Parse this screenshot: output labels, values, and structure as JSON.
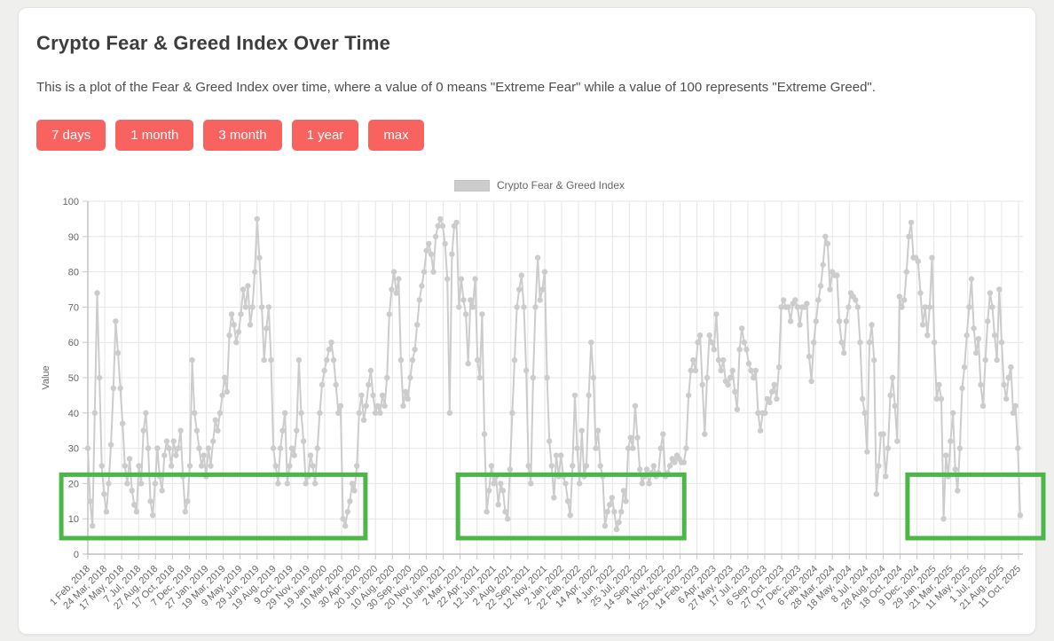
{
  "header": {
    "title": "Crypto Fear & Greed Index Over Time",
    "description": "This is a plot of the Fear & Greed Index over time, where a value of 0 means \"Extreme Fear\" while a value of 100 represents \"Extreme Greed\"."
  },
  "toolbar": {
    "buttons": [
      {
        "label": "7 days"
      },
      {
        "label": "1 month"
      },
      {
        "label": "3 month"
      },
      {
        "label": "1 year"
      },
      {
        "label": "max"
      }
    ]
  },
  "legend": {
    "label": "Crypto Fear & Greed Index"
  },
  "colors": {
    "accent": "#f8625f",
    "series": "#cccccc",
    "highlight": "#4cb648",
    "grid": "#e6e6e6",
    "axis": "#b3b3b3",
    "tick_text": "#666666",
    "title_text": "#3d3d3d",
    "body_text": "#4e4e4e",
    "page_bg": "#efefee",
    "card_bg": "#ffffff"
  },
  "chart_data": {
    "type": "line",
    "title": "",
    "legend_entries": [
      "Crypto Fear & Greed Index"
    ],
    "legend_position": "top-center",
    "xlabel": "",
    "ylabel": "Value",
    "ylim": [
      0,
      100
    ],
    "y_ticks": [
      0,
      10,
      20,
      30,
      40,
      50,
      60,
      70,
      80,
      90,
      100
    ],
    "grid": true,
    "x_start_date": "2018-02-01",
    "x_end_date": "2025-10-16",
    "x_span_days": 2809,
    "x_tick_labels": [
      "1 Feb, 2018",
      "24 Mar, 2018",
      "17 May, 2018",
      "7 Jul, 2018",
      "27 Aug, 2018",
      "17 Oct, 2018",
      "7 Dec, 2018",
      "27 Jan, 2019",
      "19 Mar, 2019",
      "9 May, 2019",
      "29 Jun, 2019",
      "19 Aug, 2019",
      "9 Oct, 2019",
      "29 Nov, 2019",
      "19 Jan, 2020",
      "10 Mar, 2020",
      "30 Apr, 2020",
      "20 Jun, 2020",
      "10 Aug, 2020",
      "30 Sep, 2020",
      "20 Nov, 2020",
      "10 Jan, 2021",
      "2 Mar, 2021",
      "22 Apr, 2021",
      "12 Jun, 2021",
      "2 Aug, 2021",
      "22 Sep, 2021",
      "12 Nov, 2021",
      "2 Jan, 2022",
      "22 Feb, 2022",
      "14 Apr, 2022",
      "4 Jun, 2022",
      "25 Jul, 2022",
      "14 Sep, 2022",
      "4 Nov, 2022",
      "25 Dec, 2022",
      "14 Feb, 2023",
      "6 Apr, 2023",
      "27 May, 2023",
      "17 Jul, 2023",
      "6 Sep, 2023",
      "27 Oct, 2023",
      "17 Dec, 2023",
      "6 Feb, 2024",
      "28 Mar, 2024",
      "18 May, 2024",
      "8 Jul, 2024",
      "28 Aug, 2024",
      "18 Oct, 2024",
      "9 Dec, 2024",
      "29 Jan, 2025",
      "21 Mar, 2025",
      "11 May, 2025",
      "1 Jul, 2025",
      "21 Aug, 2025",
      "11 Oct, 2025"
    ],
    "series": [
      {
        "name": "Crypto Fear & Greed Index",
        "color": "#cccccc",
        "marker": "circle",
        "start_date": "2018-02-01",
        "interval_days": 7,
        "values": [
          30,
          15,
          8,
          40,
          74,
          50,
          25,
          17,
          12,
          20,
          31,
          47,
          66,
          57,
          47,
          37,
          25,
          20,
          27,
          18,
          14,
          12,
          25,
          20,
          35,
          40,
          30,
          15,
          11,
          20,
          30,
          22,
          18,
          28,
          32,
          30,
          25,
          32,
          28,
          30,
          35,
          22,
          12,
          15,
          25,
          55,
          40,
          35,
          30,
          25,
          28,
          22,
          30,
          25,
          32,
          38,
          35,
          40,
          45,
          50,
          46,
          62,
          68,
          65,
          60,
          63,
          68,
          75,
          70,
          76,
          65,
          70,
          80,
          95,
          84,
          70,
          55,
          64,
          70,
          55,
          30,
          25,
          20,
          30,
          35,
          40,
          20,
          25,
          30,
          28,
          35,
          55,
          40,
          32,
          20,
          22,
          28,
          25,
          20,
          30,
          40,
          48,
          52,
          55,
          58,
          60,
          55,
          48,
          40,
          42,
          10,
          8,
          12,
          15,
          20,
          18,
          25,
          40,
          45,
          38,
          42,
          48,
          52,
          45,
          40,
          42,
          40,
          45,
          42,
          50,
          68,
          75,
          80,
          74,
          78,
          55,
          42,
          46,
          44,
          50,
          55,
          58,
          65,
          72,
          76,
          80,
          86,
          88,
          85,
          80,
          90,
          93,
          95,
          93,
          88,
          78,
          40,
          85,
          93,
          94,
          70,
          78,
          72,
          68,
          54,
          72,
          70,
          78,
          55,
          50,
          68,
          34,
          12,
          18,
          25,
          20,
          22,
          14,
          20,
          18,
          12,
          10,
          24,
          40,
          55,
          70,
          75,
          79,
          70,
          52,
          25,
          20,
          50,
          70,
          84,
          72,
          75,
          80,
          50,
          32,
          25,
          16,
          28,
          22,
          28,
          22,
          20,
          15,
          11,
          25,
          45,
          30,
          20,
          35,
          22,
          25,
          45,
          60,
          50,
          30,
          35,
          25,
          22,
          8,
          12,
          14,
          16,
          12,
          7,
          9,
          12,
          18,
          15,
          30,
          33,
          30,
          42,
          33,
          24,
          20,
          22,
          24,
          20,
          23,
          25,
          22,
          23,
          30,
          34,
          22,
          23,
          25,
          27,
          26,
          28,
          27,
          26,
          26,
          30,
          45,
          52,
          55,
          52,
          60,
          62,
          48,
          34,
          50,
          62,
          60,
          58,
          68,
          55,
          52,
          55,
          49,
          48,
          50,
          52,
          46,
          41,
          58,
          64,
          60,
          58,
          54,
          52,
          50,
          52,
          40,
          35,
          40,
          40,
          44,
          43,
          46,
          48,
          44,
          53,
          70,
          72,
          70,
          70,
          66,
          71,
          72,
          70,
          65,
          70,
          70,
          71,
          56,
          49,
          60,
          66,
          72,
          76,
          82,
          90,
          88,
          75,
          80,
          79,
          79,
          66,
          60,
          57,
          66,
          70,
          74,
          73,
          72,
          70,
          60,
          44,
          40,
          29,
          60,
          65,
          55,
          17,
          25,
          34,
          34,
          22,
          30,
          45,
          50,
          42,
          32,
          73,
          70,
          72,
          80,
          90,
          94,
          84,
          84,
          83,
          74,
          65,
          70,
          62,
          70,
          84,
          60,
          44,
          48,
          44,
          10,
          28,
          22,
          32,
          40,
          24,
          18,
          30,
          47,
          53,
          62,
          70,
          78,
          64,
          57,
          61,
          48,
          42,
          55,
          66,
          74,
          70,
          62,
          55,
          75,
          60,
          48,
          44,
          50,
          53,
          40,
          42,
          30,
          11
        ]
      }
    ],
    "highlight_boxes": [
      {
        "color": "#4cb648",
        "day_start": -80,
        "day_end": 838,
        "value_min": 4.5,
        "value_max": 22.5
      },
      {
        "color": "#4cb648",
        "day_start": 1117,
        "day_end": 1800,
        "value_min": 4.5,
        "value_max": 22.5
      },
      {
        "color": "#4cb648",
        "day_start": 2474,
        "day_end": 2884,
        "value_min": 4.5,
        "value_max": 22.5
      }
    ]
  }
}
